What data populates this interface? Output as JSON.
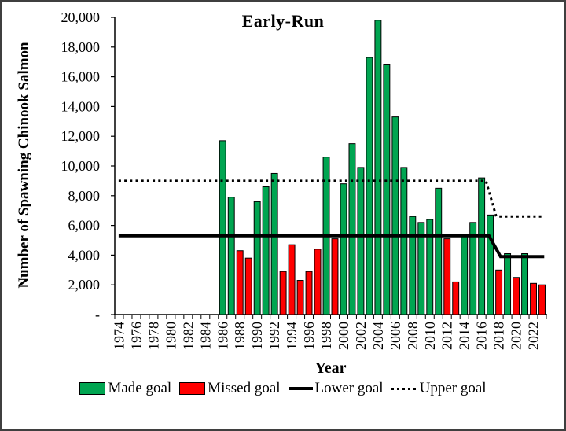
{
  "chart_data": {
    "type": "bar",
    "title": "Early-Run",
    "xlabel": "Year",
    "ylabel": "Number of Spawning Chinook Salmon",
    "ylim": [
      0,
      20000
    ],
    "grid": false,
    "ytick_values": [
      0,
      2000,
      4000,
      6000,
      8000,
      10000,
      12000,
      14000,
      16000,
      18000,
      20000
    ],
    "ytick_labels": [
      "-",
      "2,000",
      "4,000",
      "6,000",
      "8,000",
      "10,000",
      "12,000",
      "14,000",
      "16,000",
      "18,000",
      "20,000"
    ],
    "x_range": [
      1974,
      2023
    ],
    "xtick_label_years": [
      "1974",
      "1976",
      "1978",
      "1980",
      "1982",
      "1984",
      "1986",
      "1988",
      "1990",
      "1992",
      "1994",
      "1996",
      "1998",
      "2000",
      "2002",
      "2004",
      "2006",
      "2008",
      "2010",
      "2012",
      "2014",
      "2016",
      "2018",
      "2020",
      "2022"
    ],
    "colors": {
      "made": "#00A551",
      "missed": "#FF0000",
      "line": "#000000"
    },
    "bars": [
      {
        "year": 1986,
        "value": 11700,
        "status": "made"
      },
      {
        "year": 1987,
        "value": 7900,
        "status": "made"
      },
      {
        "year": 1988,
        "value": 4300,
        "status": "missed"
      },
      {
        "year": 1989,
        "value": 3800,
        "status": "missed"
      },
      {
        "year": 1990,
        "value": 7600,
        "status": "made"
      },
      {
        "year": 1991,
        "value": 8600,
        "status": "made"
      },
      {
        "year": 1992,
        "value": 9500,
        "status": "made"
      },
      {
        "year": 1993,
        "value": 2900,
        "status": "missed"
      },
      {
        "year": 1994,
        "value": 4700,
        "status": "missed"
      },
      {
        "year": 1995,
        "value": 2300,
        "status": "missed"
      },
      {
        "year": 1996,
        "value": 2900,
        "status": "missed"
      },
      {
        "year": 1997,
        "value": 4400,
        "status": "missed"
      },
      {
        "year": 1998,
        "value": 10600,
        "status": "made"
      },
      {
        "year": 1999,
        "value": 5100,
        "status": "missed"
      },
      {
        "year": 2000,
        "value": 8800,
        "status": "made"
      },
      {
        "year": 2001,
        "value": 11500,
        "status": "made"
      },
      {
        "year": 2002,
        "value": 9900,
        "status": "made"
      },
      {
        "year": 2003,
        "value": 17300,
        "status": "made"
      },
      {
        "year": 2004,
        "value": 19800,
        "status": "made"
      },
      {
        "year": 2005,
        "value": 16800,
        "status": "made"
      },
      {
        "year": 2006,
        "value": 13300,
        "status": "made"
      },
      {
        "year": 2007,
        "value": 9900,
        "status": "made"
      },
      {
        "year": 2008,
        "value": 6600,
        "status": "made"
      },
      {
        "year": 2009,
        "value": 6200,
        "status": "made"
      },
      {
        "year": 2010,
        "value": 6400,
        "status": "made"
      },
      {
        "year": 2011,
        "value": 8500,
        "status": "made"
      },
      {
        "year": 2012,
        "value": 5100,
        "status": "missed"
      },
      {
        "year": 2013,
        "value": 2200,
        "status": "missed"
      },
      {
        "year": 2014,
        "value": 5300,
        "status": "made"
      },
      {
        "year": 2015,
        "value": 6200,
        "status": "made"
      },
      {
        "year": 2016,
        "value": 9200,
        "status": "made"
      },
      {
        "year": 2017,
        "value": 6700,
        "status": "made"
      },
      {
        "year": 2018,
        "value": 3000,
        "status": "missed"
      },
      {
        "year": 2019,
        "value": 4100,
        "status": "made"
      },
      {
        "year": 2020,
        "value": 2500,
        "status": "missed"
      },
      {
        "year": 2021,
        "value": 4100,
        "status": "made"
      },
      {
        "year": 2022,
        "value": 2100,
        "status": "missed"
      },
      {
        "year": 2023,
        "value": 2000,
        "status": "missed"
      }
    ],
    "goal_lines": [
      {
        "name": "Lower goal",
        "style": "solid",
        "points": [
          [
            1974.45,
            5300
          ],
          [
            2017.35,
            5300
          ],
          [
            2018.7,
            3900
          ],
          [
            2023.75,
            3900
          ]
        ]
      },
      {
        "name": "Upper goal",
        "style": "dotted",
        "points": [
          [
            1974.45,
            9000
          ],
          [
            2017.0,
            9000
          ],
          [
            2018.2,
            6600
          ],
          [
            2023.75,
            6600
          ]
        ]
      }
    ],
    "legend": {
      "position": "bottom",
      "items": [
        {
          "label": "Made goal",
          "marker": "swatch",
          "color_key": "made"
        },
        {
          "label": "Missed goal",
          "marker": "swatch",
          "color_key": "missed"
        },
        {
          "label": "Lower goal",
          "marker": "line-solid"
        },
        {
          "label": "Upper goal",
          "marker": "line-dotted"
        }
      ]
    }
  }
}
